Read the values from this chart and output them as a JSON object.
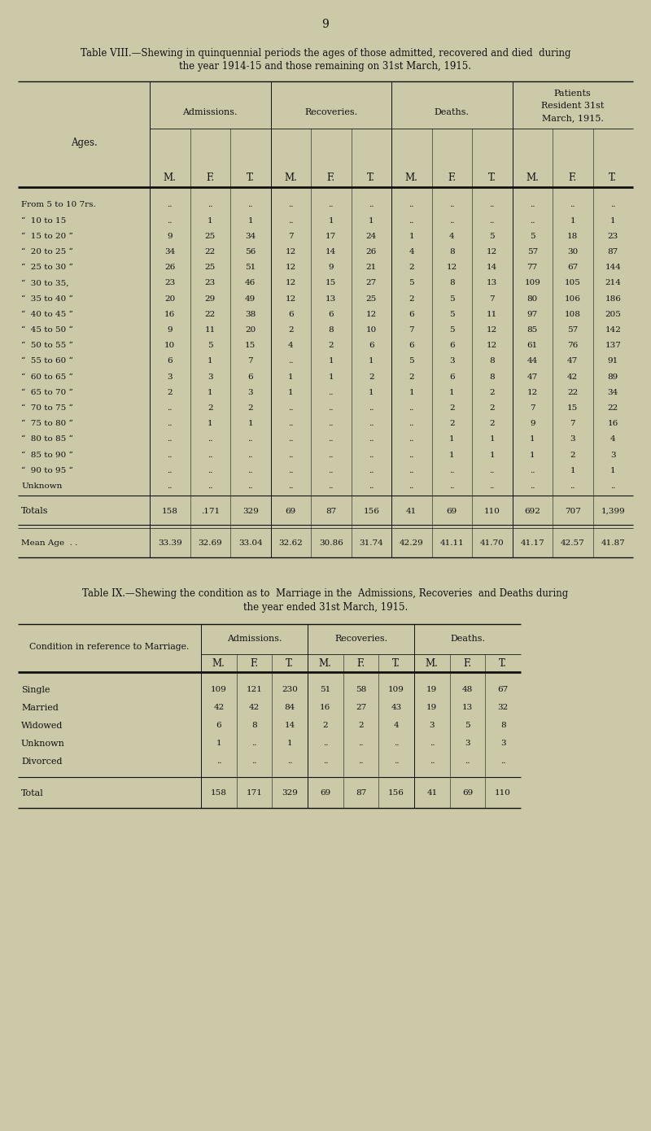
{
  "bg_color": "#ccc9a8",
  "text_color": "#1a1a1a",
  "page_number": "9",
  "table8_title_line1": "Table VIII.—Shewing in quinquennial periods the ages of those admitted, recovered and died  during",
  "table8_title_line2": "the year 1914-15 and those remaining on 31st March, 1915.",
  "table8_sub_headers": [
    "M.",
    "F.",
    "T.",
    "M.",
    "F.",
    "T.",
    "M.",
    "F.",
    "T.",
    "M.",
    "F.",
    "T."
  ],
  "table8_rows": [
    [
      "From 5 to 10 7rs.",
      "..",
      "..",
      "..",
      "..",
      "..",
      "..",
      "..",
      "..",
      "..",
      "..",
      "..",
      ".."
    ],
    [
      "“  10 to 15",
      "..",
      "1",
      "1",
      "..",
      "1",
      "1",
      "..",
      "..",
      "..",
      "..",
      "1",
      "1"
    ],
    [
      "“  15 to 20 “",
      "9",
      "25",
      "34",
      "7",
      "17",
      "24",
      "1",
      "4",
      "5",
      "5",
      "18",
      "23"
    ],
    [
      "“  20 to 25 “",
      "34",
      "22",
      "56",
      "12",
      "14",
      "26",
      "4",
      "8",
      "12",
      "57",
      "30",
      "87"
    ],
    [
      "“  25 to 30 “",
      "26",
      "25",
      "51",
      "12",
      "9",
      "21",
      "2",
      "12",
      "14",
      "77",
      "67",
      "144"
    ],
    [
      "“  30 to 35,",
      "23",
      "23",
      "46",
      "12",
      "15",
      "27",
      "5",
      "8",
      "13",
      "109",
      "105",
      "214"
    ],
    [
      "“  35 to 40 “",
      "20",
      "29",
      "49",
      "12",
      "13",
      "25",
      "2",
      "5",
      "7",
      "80",
      "106",
      "186"
    ],
    [
      "“  40 to 45 “",
      "16",
      "22",
      "38",
      "6",
      "6",
      "12",
      "6",
      "5",
      "11",
      "97",
      "108",
      "205"
    ],
    [
      "“  45 to 50 “",
      "9",
      "11",
      "20",
      "2",
      "8",
      "10",
      "7",
      "5",
      "12",
      "85",
      "57",
      "142"
    ],
    [
      "“  50 to 55 “",
      "10",
      "5",
      "15",
      "4",
      "2",
      "6",
      "6",
      "6",
      "12",
      "61",
      "76",
      "137"
    ],
    [
      "“  55 to 60 “",
      "6",
      "1",
      "7",
      "..",
      "1",
      "1",
      "5",
      "3",
      "8",
      "44",
      "47",
      "91"
    ],
    [
      "“  60 to 65 “",
      "3",
      "3",
      "6",
      "1",
      "1",
      "2",
      "2",
      "6",
      "8",
      "47",
      "42",
      "89"
    ],
    [
      "“  65 to 70 “",
      "2",
      "1",
      "3",
      "1",
      "..",
      "1",
      "1",
      "1",
      "2",
      "12",
      "22",
      "34"
    ],
    [
      "“  70 to 75 “",
      "..",
      "2",
      "2",
      "..",
      "..",
      "..",
      "..",
      "2",
      "2",
      "7",
      "15",
      "22"
    ],
    [
      "“  75 to 80 “",
      "..",
      "1",
      "1",
      "..",
      "..",
      "..",
      "..",
      "2",
      "2",
      "9",
      "7",
      "16"
    ],
    [
      "“  80 to 85 “",
      "..",
      "..",
      "..",
      "..",
      "..",
      "..",
      "..",
      "1",
      "1",
      "1",
      "3",
      "4"
    ],
    [
      "“  85 to 90 “",
      "..",
      "..",
      "..",
      "..",
      "..",
      "..",
      "..",
      "1",
      "1",
      "1",
      "2",
      "3"
    ],
    [
      "“  90 to 95 “",
      "..",
      "..",
      "..",
      "..",
      "..",
      "..",
      "..",
      "..",
      "..",
      "..",
      "1",
      "1"
    ],
    [
      "Unknown",
      "..",
      "..",
      "..",
      "..",
      "..",
      "..",
      "..",
      "..",
      "..",
      "..",
      "..",
      ".."
    ]
  ],
  "table8_totals_vals": [
    "158",
    ".171",
    "329",
    "69",
    "87",
    "156",
    "41",
    "69",
    "110",
    "692",
    "707",
    "1,399"
  ],
  "table8_mean_vals": [
    "33.39",
    "32.69",
    "33.04",
    "32.62",
    "30.86",
    "31.74",
    "42.29",
    "41.11",
    "41.70",
    "41.17",
    "42.57",
    "41.87"
  ],
  "table9_title_line1": "Table IX.—Shewing the condition as to  Marriage in the  Admissions, Recoveries  and Deaths during",
  "table9_title_line2": "the year ended 31st March, 1915.",
  "table9_col_groups": [
    "Admissions.",
    "Recoveries.",
    "Deaths."
  ],
  "table9_sub_headers": [
    "M.",
    "F.",
    "T.",
    "M.",
    "F.",
    "T.",
    "M.",
    "F.",
    "T."
  ],
  "table9_row_label": "Condition in reference to Marriage.",
  "table9_rows": [
    [
      "Single",
      "109",
      "121",
      "230",
      "51",
      "58",
      "109",
      "19",
      "48",
      "67"
    ],
    [
      "Married",
      "42",
      "42",
      "84",
      "16",
      "27",
      "43",
      "19",
      "13",
      "32"
    ],
    [
      "Widowed",
      "6",
      "8",
      "14",
      "2",
      "2",
      "4",
      "3",
      "5",
      "8"
    ],
    [
      "Unknown",
      "1",
      "..",
      "1",
      "..",
      "..",
      "..",
      "..",
      "3",
      "3"
    ],
    [
      "Divorced",
      "..",
      "..",
      "..",
      "..",
      "..",
      "..",
      "..",
      "..",
      ".."
    ]
  ],
  "table9_totals_data": [
    "158",
    "171",
    "329",
    "69",
    "87",
    "156",
    "41",
    "69",
    "110"
  ]
}
